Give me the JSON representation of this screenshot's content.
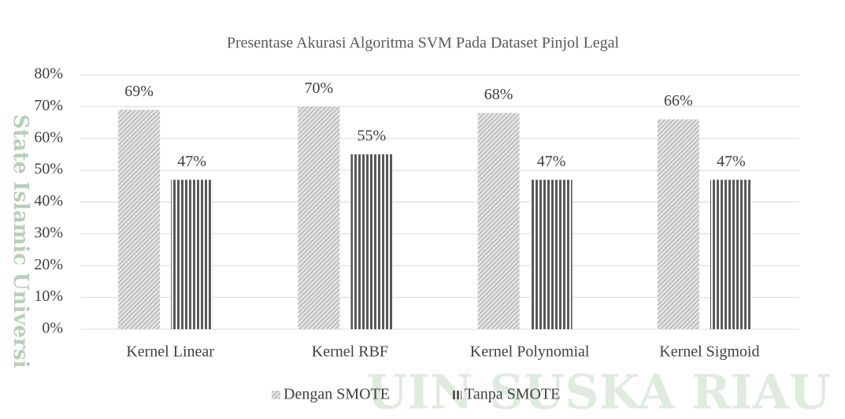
{
  "chart_data": {
    "type": "bar",
    "title": "Presentase Akurasi Algoritma SVM Pada Dataset Pinjol Legal",
    "categories": [
      "Kernel Linear",
      "Kernel RBF",
      "Kernel Polynomial",
      "Kernel Sigmoid"
    ],
    "series": [
      {
        "name": "Dengan SMOTE",
        "color": "#a6a6a6",
        "values": [
          69,
          70,
          68,
          66
        ],
        "value_labels": [
          "69%",
          "70%",
          "68%",
          "66%"
        ]
      },
      {
        "name": "Tanpa SMOTE",
        "color": "#595959",
        "values": [
          47,
          55,
          47,
          47
        ],
        "value_labels": [
          "47%",
          "55%",
          "47%",
          "47%"
        ]
      }
    ],
    "ylim": [
      0,
      80
    ],
    "yticks": [
      {
        "value": 0,
        "label": "0%"
      },
      {
        "value": 10,
        "label": "10%"
      },
      {
        "value": 20,
        "label": "20%"
      },
      {
        "value": 30,
        "label": "30%"
      },
      {
        "value": 40,
        "label": "40%"
      },
      {
        "value": 50,
        "label": "50%"
      },
      {
        "value": 60,
        "label": "60%"
      },
      {
        "value": 70,
        "label": "70%"
      },
      {
        "value": 80,
        "label": "80%"
      }
    ],
    "grid": true,
    "legend": "bottom"
  },
  "watermark": {
    "side": "State Islamic Universi",
    "bottom": "UIN SUSKA RIAU"
  }
}
